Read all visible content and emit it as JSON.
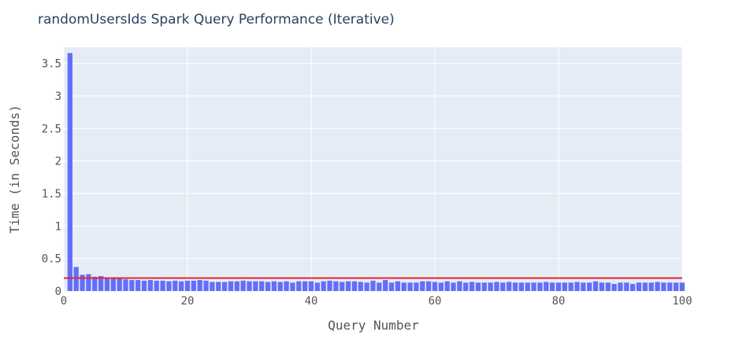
{
  "chart_data": {
    "type": "bar",
    "title": "randomUsersIds Spark Query Performance (Iterative)",
    "xlabel": "Query Number",
    "ylabel": "Time (in Seconds)",
    "xlim": [
      0,
      100
    ],
    "ylim": [
      0,
      3.75
    ],
    "xticks": [
      0,
      20,
      40,
      60,
      80,
      100
    ],
    "yticks": [
      0,
      0.5,
      1,
      1.5,
      2,
      2.5,
      3,
      3.5
    ],
    "grid": true,
    "x": [
      1,
      2,
      3,
      4,
      5,
      6,
      7,
      8,
      9,
      10,
      11,
      12,
      13,
      14,
      15,
      16,
      17,
      18,
      19,
      20,
      21,
      22,
      23,
      24,
      25,
      26,
      27,
      28,
      29,
      30,
      31,
      32,
      33,
      34,
      35,
      36,
      37,
      38,
      39,
      40,
      41,
      42,
      43,
      44,
      45,
      46,
      47,
      48,
      49,
      50,
      51,
      52,
      53,
      54,
      55,
      56,
      57,
      58,
      59,
      60,
      61,
      62,
      63,
      64,
      65,
      66,
      67,
      68,
      69,
      70,
      71,
      72,
      73,
      74,
      75,
      76,
      77,
      78,
      79,
      80,
      81,
      82,
      83,
      84,
      85,
      86,
      87,
      88,
      89,
      90,
      91,
      92,
      93,
      94,
      95,
      96,
      97,
      98,
      99,
      100
    ],
    "values": [
      3.66,
      0.37,
      0.25,
      0.26,
      0.22,
      0.23,
      0.2,
      0.2,
      0.19,
      0.18,
      0.17,
      0.17,
      0.16,
      0.17,
      0.16,
      0.16,
      0.15,
      0.16,
      0.15,
      0.16,
      0.16,
      0.17,
      0.16,
      0.14,
      0.14,
      0.14,
      0.15,
      0.15,
      0.16,
      0.15,
      0.15,
      0.15,
      0.14,
      0.15,
      0.14,
      0.15,
      0.13,
      0.15,
      0.15,
      0.15,
      0.13,
      0.15,
      0.16,
      0.15,
      0.14,
      0.15,
      0.15,
      0.14,
      0.13,
      0.16,
      0.13,
      0.17,
      0.13,
      0.15,
      0.13,
      0.13,
      0.13,
      0.15,
      0.15,
      0.14,
      0.13,
      0.15,
      0.13,
      0.15,
      0.13,
      0.14,
      0.13,
      0.13,
      0.13,
      0.14,
      0.13,
      0.14,
      0.13,
      0.13,
      0.13,
      0.13,
      0.13,
      0.14,
      0.13,
      0.13,
      0.13,
      0.13,
      0.14,
      0.13,
      0.13,
      0.15,
      0.13,
      0.13,
      0.11,
      0.13,
      0.13,
      0.11,
      0.13,
      0.13,
      0.13,
      0.14,
      0.13,
      0.13,
      0.13,
      0.13
    ],
    "reference_line": {
      "y": 0.2,
      "color": "#e8252b"
    },
    "colors": {
      "bar": "#636efa",
      "plot_bg": "#e5ecf6",
      "grid": "#ffffff",
      "title": "#2a3f5f",
      "axis_text": "#555555"
    }
  }
}
